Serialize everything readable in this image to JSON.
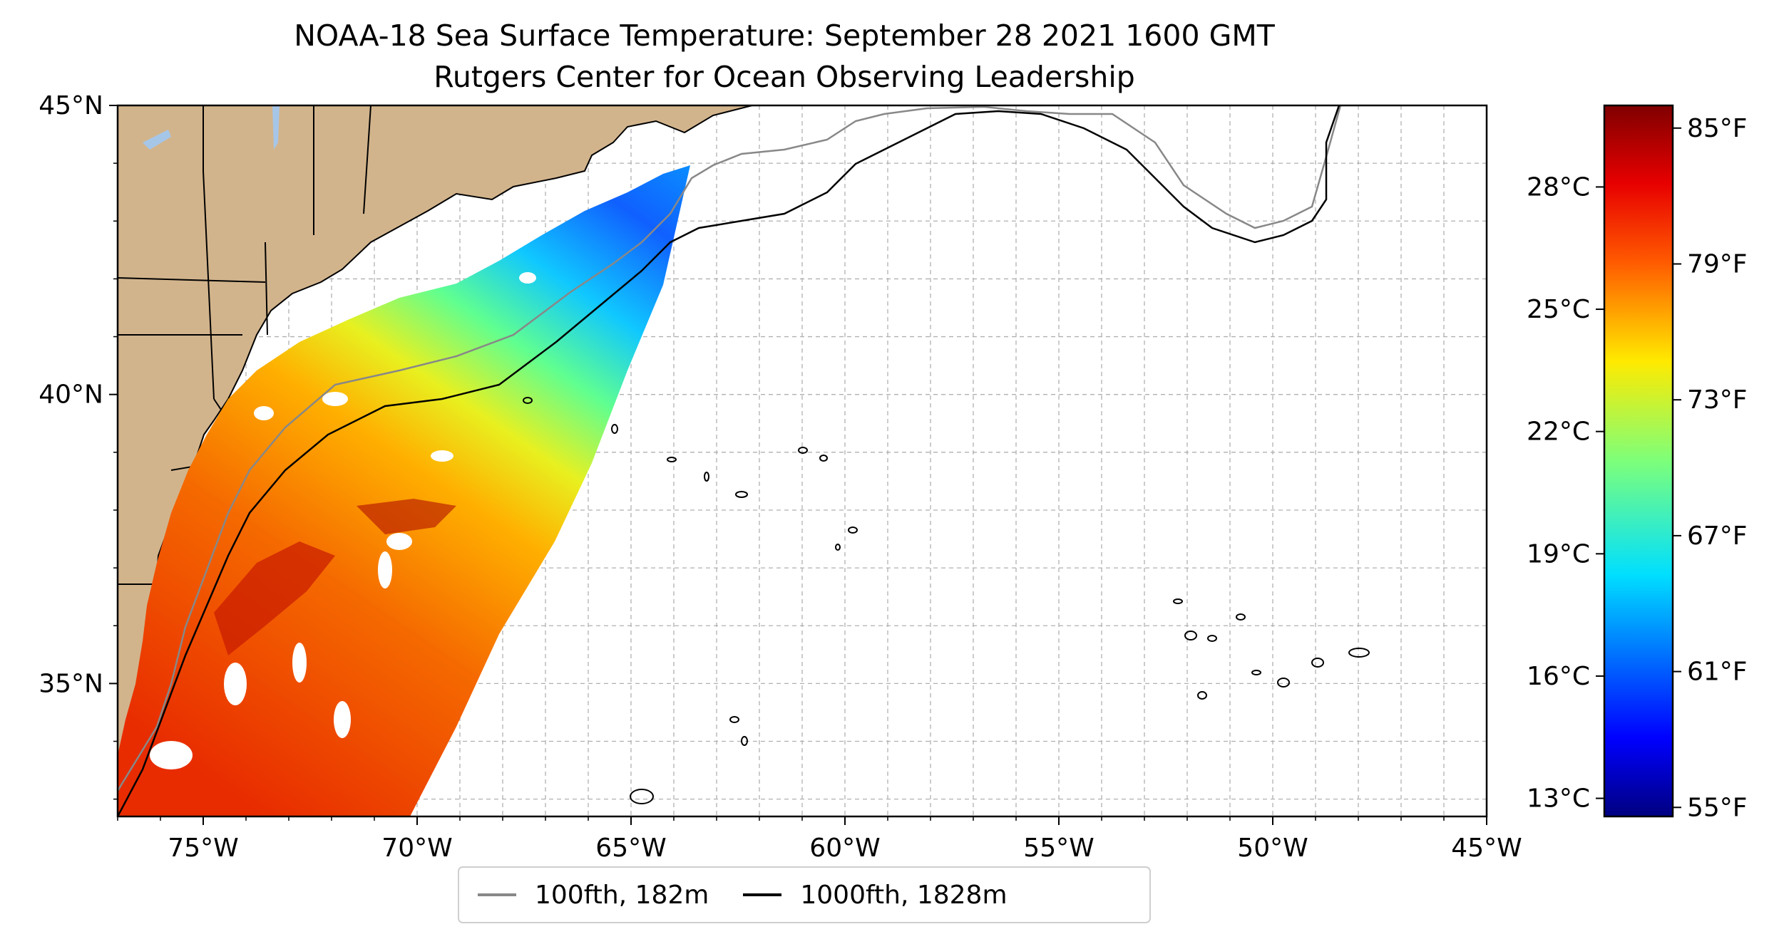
{
  "title": {
    "line1": "NOAA-18 Sea Surface Temperature: September 28 2021 1600 GMT",
    "line2": "Rutgers Center for Ocean Observing Leadership"
  },
  "map": {
    "lon_range": [
      -77,
      -45
    ],
    "lat_range": [
      32.7,
      45
    ],
    "x_ticks": [
      {
        "lon": -75,
        "label": "75°W"
      },
      {
        "lon": -70,
        "label": "70°W"
      },
      {
        "lon": -65,
        "label": "65°W"
      },
      {
        "lon": -60,
        "label": "60°W"
      },
      {
        "lon": -55,
        "label": "55°W"
      },
      {
        "lon": -50,
        "label": "50°W"
      },
      {
        "lon": -45,
        "label": "45°W"
      }
    ],
    "y_ticks": [
      {
        "lat": 45,
        "label": "45°N"
      },
      {
        "lat": 40,
        "label": "40°N"
      },
      {
        "lat": 35,
        "label": "35°N"
      }
    ],
    "land_color": "#d2b48c",
    "water_body_color": "#a6c6e8",
    "colormap": "jet"
  },
  "legend": {
    "items": [
      {
        "label": "100fth, 182m",
        "color": "#888888"
      },
      {
        "label": "1000fth, 1828m",
        "color": "#000000"
      }
    ]
  },
  "colorbar": {
    "range_f": [
      54.6,
      86.0
    ],
    "celsius_ticks": [
      {
        "value_f": 55.4,
        "label": "13°C"
      },
      {
        "value_f": 60.8,
        "label": "16°C"
      },
      {
        "value_f": 66.2,
        "label": "19°C"
      },
      {
        "value_f": 71.6,
        "label": "22°C"
      },
      {
        "value_f": 77.0,
        "label": "25°C"
      },
      {
        "value_f": 82.4,
        "label": "28°C"
      }
    ],
    "fahrenheit_ticks": [
      {
        "value_f": 55,
        "label": "55°F"
      },
      {
        "value_f": 61,
        "label": "61°F"
      },
      {
        "value_f": 67,
        "label": "67°F"
      },
      {
        "value_f": 73,
        "label": "73°F"
      },
      {
        "value_f": 79,
        "label": "79°F"
      },
      {
        "value_f": 85,
        "label": "85°F"
      }
    ]
  }
}
